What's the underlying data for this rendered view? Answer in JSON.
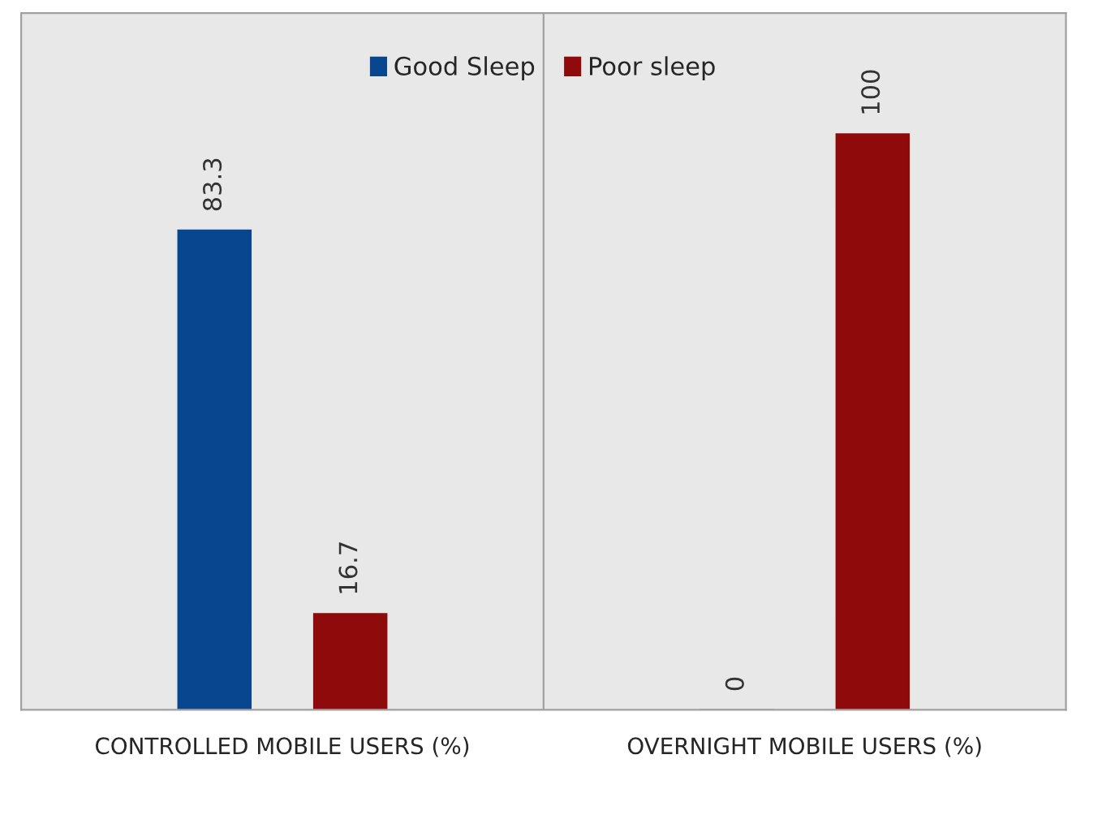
{
  "chart_data": {
    "type": "bar",
    "categories": [
      "CONTROLLED MOBILE USERS (%)",
      "OVERNIGHT MOBILE USERS (%)"
    ],
    "series": [
      {
        "name": "Good Sleep",
        "color": "#08468f",
        "values": [
          83.3,
          0
        ]
      },
      {
        "name": "Poor sleep",
        "color": "#8f0a0a",
        "values": [
          16.7,
          100
        ]
      }
    ],
    "ylim": [
      0,
      121
    ],
    "data_labels": true,
    "legend": "top",
    "grid": "x",
    "tick_labels": "x"
  }
}
